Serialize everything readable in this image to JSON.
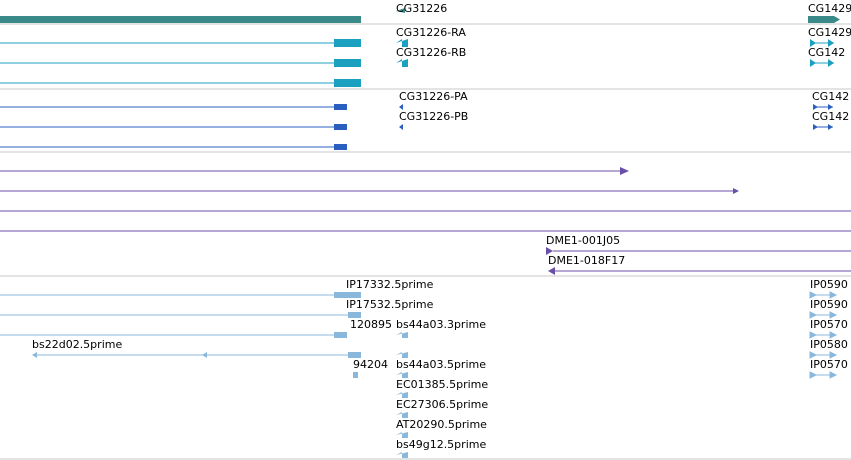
{
  "colors": {
    "gene": "#3a8a8a",
    "transcript": "#1ca0c0",
    "protein": "#2a5fc0",
    "clone": "#6a4fa8",
    "est": "#8ab8dc",
    "divider": "#c8c8c8"
  },
  "labels": {
    "gene_left": "CG31226",
    "gene_right": "CG1429",
    "transcript_left_1": "CG31226-RA",
    "transcript_left_2": "CG31226-RB",
    "transcript_right_1": "CG1429",
    "transcript_right_2": "CG142",
    "protein_left_1": "CG31226-PA",
    "protein_left_2": "CG31226-PB",
    "protein_right_1": "CG142",
    "protein_right_2": "CG142",
    "clone_1": "DME1-001J05",
    "clone_2": "DME1-018F17",
    "est_1": "IP17332.5prime",
    "est_2": "IP17532.5prime",
    "est_3": "120895",
    "est_3b": "bs44a03.3prime",
    "est_4": "bs22d02.5prime",
    "est_5": "94204",
    "est_5b": "bs44a03.5prime",
    "est_6": "EC01385.5prime",
    "est_7": "EC27306.5prime",
    "est_8": "AT20290.5prime",
    "est_9": "bs49g12.5prime",
    "est_r1": "IP0590",
    "est_r2": "IP0590",
    "est_r3": "IP0570",
    "est_r4": "IP0580",
    "est_r5": "IP0570"
  }
}
